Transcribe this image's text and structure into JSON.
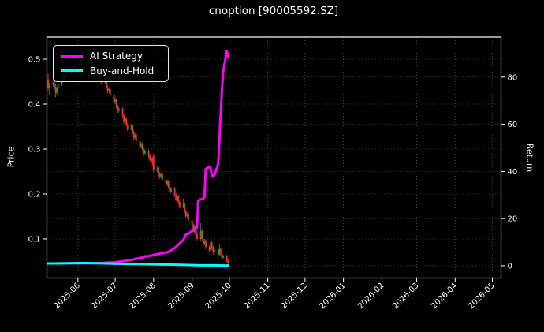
{
  "window": {
    "title": "cnoption [90005592.SZ]"
  },
  "chart_data": {
    "type": "candlestick+line",
    "title": "cnoption [90005592.SZ]",
    "background": "#000000",
    "text_color": "#ffffff",
    "grid": {
      "on": true,
      "color": "#6b6b6b",
      "style": "dotted"
    },
    "x_axis": {
      "tick_labels": [
        "2025-06",
        "2025-07",
        "2025-08",
        "2025-09",
        "2025-10",
        "2025-11",
        "2025-12",
        "2026-01",
        "2026-02",
        "2026-03",
        "2026-04",
        "2026-05"
      ],
      "range_days": [
        "2025-05-07",
        "2026-05-08"
      ]
    },
    "left_axis": {
      "label": "Price",
      "ticks": [
        0.5,
        0.4,
        0.3,
        0.2,
        0.1
      ],
      "range": [
        0.0131,
        0.5491
      ]
    },
    "right_axis": {
      "label": "Return",
      "ticks": [
        80,
        60,
        40,
        20,
        0
      ],
      "range": [
        -5.2,
        97.0
      ]
    },
    "legend": {
      "position": "upper-left",
      "entries": [
        {
          "label": "AI Strategy",
          "color": "#ff00ff"
        },
        {
          "label": "Buy-and-Hold",
          "color": "#00ffff"
        }
      ]
    },
    "candles": {
      "axis": "left",
      "up_color": "#00a83c",
      "down_color": "#ff2626",
      "ohlc": [
        [
          "2025-05-08",
          0.455,
          0.468,
          0.428,
          0.435
        ],
        [
          "2025-05-09",
          0.435,
          0.448,
          0.42,
          0.443
        ],
        [
          "2025-05-12",
          0.443,
          0.452,
          0.438,
          0.448
        ],
        [
          "2025-05-13",
          0.448,
          0.453,
          0.434,
          0.44
        ],
        [
          "2025-05-14",
          0.44,
          0.444,
          0.415,
          0.425
        ],
        [
          "2025-05-15",
          0.425,
          0.438,
          0.42,
          0.435
        ],
        [
          "2025-05-16",
          0.435,
          0.448,
          0.43,
          0.445
        ],
        [
          "2025-05-19",
          0.445,
          0.455,
          0.44,
          0.452
        ],
        [
          "2025-05-20",
          0.452,
          0.463,
          0.448,
          0.46
        ],
        [
          "2025-05-21",
          0.46,
          0.465,
          0.45,
          0.455
        ],
        [
          "2025-05-22",
          0.455,
          0.468,
          0.452,
          0.465
        ],
        [
          "2025-05-23",
          0.465,
          0.476,
          0.46,
          0.472
        ],
        [
          "2025-05-26",
          0.472,
          0.477,
          0.463,
          0.468
        ],
        [
          "2025-05-27",
          0.468,
          0.482,
          0.465,
          0.478
        ],
        [
          "2025-05-28",
          0.478,
          0.49,
          0.474,
          0.485
        ],
        [
          "2025-05-29",
          0.485,
          0.489,
          0.475,
          0.48
        ],
        [
          "2025-05-30",
          0.48,
          0.492,
          0.477,
          0.488
        ],
        [
          "2025-06-02",
          0.488,
          0.498,
          0.484,
          0.495
        ],
        [
          "2025-06-03",
          0.495,
          0.5,
          0.487,
          0.49
        ],
        [
          "2025-06-04",
          0.49,
          0.504,
          0.487,
          0.5
        ],
        [
          "2025-06-05",
          0.5,
          0.51,
          0.496,
          0.505
        ],
        [
          "2025-06-06",
          0.505,
          0.509,
          0.494,
          0.498
        ],
        [
          "2025-06-09",
          0.498,
          0.507,
          0.494,
          0.503
        ],
        [
          "2025-06-10",
          0.503,
          0.507,
          0.491,
          0.495
        ],
        [
          "2025-06-11",
          0.495,
          0.504,
          0.491,
          0.5
        ],
        [
          "2025-06-12",
          0.5,
          0.503,
          0.486,
          0.49
        ],
        [
          "2025-06-13",
          0.49,
          0.494,
          0.476,
          0.48
        ],
        [
          "2025-06-16",
          0.48,
          0.484,
          0.468,
          0.472
        ],
        [
          "2025-06-17",
          0.472,
          0.482,
          0.469,
          0.478
        ],
        [
          "2025-06-18",
          0.478,
          0.481,
          0.464,
          0.468
        ],
        [
          "2025-06-19",
          0.468,
          0.472,
          0.454,
          0.458
        ],
        [
          "2025-06-20",
          0.458,
          0.462,
          0.444,
          0.448
        ],
        [
          "2025-06-23",
          0.448,
          0.456,
          0.444,
          0.452
        ],
        [
          "2025-06-24",
          0.452,
          0.455,
          0.434,
          0.438
        ],
        [
          "2025-06-25",
          0.438,
          0.442,
          0.424,
          0.428
        ],
        [
          "2025-06-26",
          0.428,
          0.437,
          0.424,
          0.433
        ],
        [
          "2025-06-27",
          0.433,
          0.436,
          0.416,
          0.42
        ],
        [
          "2025-06-30",
          0.42,
          0.424,
          0.4,
          0.405
        ],
        [
          "2025-07-01",
          0.405,
          0.414,
          0.401,
          0.41
        ],
        [
          "2025-07-02",
          0.41,
          0.413,
          0.39,
          0.395
        ],
        [
          "2025-07-03",
          0.395,
          0.399,
          0.38,
          0.385
        ],
        [
          "2025-07-04",
          0.385,
          0.394,
          0.381,
          0.39
        ],
        [
          "2025-07-07",
          0.39,
          0.393,
          0.37,
          0.375
        ],
        [
          "2025-07-08",
          0.375,
          0.379,
          0.355,
          0.36
        ],
        [
          "2025-07-09",
          0.36,
          0.372,
          0.356,
          0.368
        ],
        [
          "2025-07-10",
          0.368,
          0.371,
          0.35,
          0.355
        ],
        [
          "2025-07-11",
          0.355,
          0.359,
          0.34,
          0.345
        ],
        [
          "2025-07-14",
          0.345,
          0.356,
          0.341,
          0.352
        ],
        [
          "2025-07-15",
          0.352,
          0.355,
          0.333,
          0.338
        ],
        [
          "2025-07-16",
          0.338,
          0.342,
          0.32,
          0.325
        ],
        [
          "2025-07-17",
          0.325,
          0.336,
          0.321,
          0.332
        ],
        [
          "2025-07-18",
          0.332,
          0.335,
          0.313,
          0.318
        ],
        [
          "2025-07-21",
          0.318,
          0.322,
          0.3,
          0.305
        ],
        [
          "2025-07-22",
          0.305,
          0.316,
          0.301,
          0.312
        ],
        [
          "2025-07-23",
          0.312,
          0.315,
          0.295,
          0.3
        ],
        [
          "2025-07-24",
          0.3,
          0.304,
          0.285,
          0.29
        ],
        [
          "2025-07-25",
          0.29,
          0.3,
          0.286,
          0.296
        ],
        [
          "2025-07-28",
          0.296,
          0.299,
          0.28,
          0.285
        ],
        [
          "2025-07-29",
          0.285,
          0.289,
          0.27,
          0.275
        ],
        [
          "2025-07-30",
          0.275,
          0.284,
          0.271,
          0.28
        ],
        [
          "2025-07-31",
          0.28,
          0.283,
          0.263,
          0.268
        ],
        [
          "2025-08-01",
          0.285,
          0.29,
          0.247,
          0.252
        ],
        [
          "2025-08-04",
          0.252,
          0.262,
          0.248,
          0.258
        ],
        [
          "2025-08-05",
          0.258,
          0.261,
          0.24,
          0.245
        ],
        [
          "2025-08-06",
          0.245,
          0.249,
          0.233,
          0.238
        ],
        [
          "2025-08-07",
          0.238,
          0.248,
          0.234,
          0.244
        ],
        [
          "2025-08-08",
          0.244,
          0.247,
          0.227,
          0.232
        ],
        [
          "2025-08-11",
          0.232,
          0.236,
          0.217,
          0.222
        ],
        [
          "2025-08-12",
          0.222,
          0.232,
          0.218,
          0.228
        ],
        [
          "2025-08-13",
          0.228,
          0.231,
          0.21,
          0.215
        ],
        [
          "2025-08-14",
          0.215,
          0.219,
          0.2,
          0.205
        ],
        [
          "2025-08-15",
          0.205,
          0.216,
          0.201,
          0.212
        ],
        [
          "2025-08-18",
          0.212,
          0.215,
          0.193,
          0.198
        ],
        [
          "2025-08-19",
          0.198,
          0.202,
          0.183,
          0.188
        ],
        [
          "2025-08-20",
          0.188,
          0.205,
          0.184,
          0.195
        ],
        [
          "2025-08-21",
          0.195,
          0.198,
          0.177,
          0.182
        ],
        [
          "2025-08-22",
          0.182,
          0.186,
          0.167,
          0.172
        ],
        [
          "2025-08-25",
          0.172,
          0.19,
          0.168,
          0.178
        ],
        [
          "2025-08-26",
          0.178,
          0.181,
          0.157,
          0.162
        ],
        [
          "2025-08-27",
          0.162,
          0.166,
          0.145,
          0.15
        ],
        [
          "2025-08-28",
          0.15,
          0.16,
          0.146,
          0.156
        ],
        [
          "2025-08-29",
          0.156,
          0.159,
          0.137,
          0.142
        ],
        [
          "2025-09-01",
          0.142,
          0.146,
          0.127,
          0.132
        ],
        [
          "2025-09-02",
          0.132,
          0.136,
          0.117,
          0.122
        ],
        [
          "2025-09-03",
          0.122,
          0.132,
          0.118,
          0.128
        ],
        [
          "2025-09-04",
          0.128,
          0.131,
          0.107,
          0.112
        ],
        [
          "2025-09-05",
          0.112,
          0.116,
          0.095,
          0.1
        ],
        [
          "2025-09-08",
          0.1,
          0.135,
          0.096,
          0.118
        ],
        [
          "2025-09-09",
          0.118,
          0.121,
          0.095,
          0.1
        ],
        [
          "2025-09-10",
          0.1,
          0.104,
          0.085,
          0.09
        ],
        [
          "2025-09-11",
          0.09,
          0.099,
          0.086,
          0.096
        ],
        [
          "2025-09-12",
          0.096,
          0.099,
          0.077,
          0.082
        ],
        [
          "2025-09-15",
          0.082,
          0.086,
          0.07,
          0.075
        ],
        [
          "2025-09-16",
          0.075,
          0.105,
          0.072,
          0.092
        ],
        [
          "2025-09-17",
          0.092,
          0.095,
          0.075,
          0.08
        ],
        [
          "2025-09-18",
          0.08,
          0.084,
          0.065,
          0.07
        ],
        [
          "2025-09-19",
          0.07,
          0.079,
          0.066,
          0.076
        ],
        [
          "2025-09-22",
          0.076,
          0.079,
          0.06,
          0.065
        ],
        [
          "2025-09-23",
          0.065,
          0.09,
          0.062,
          0.078
        ],
        [
          "2025-09-24",
          0.078,
          0.081,
          0.063,
          0.068
        ],
        [
          "2025-09-25",
          0.068,
          0.071,
          0.053,
          0.058
        ],
        [
          "2025-09-26",
          0.058,
          0.065,
          0.054,
          0.062
        ],
        [
          "2025-09-29",
          0.062,
          0.065,
          0.047,
          0.052
        ],
        [
          "2025-09-30",
          0.052,
          0.055,
          0.042,
          0.046
        ]
      ]
    },
    "series": [
      {
        "name": "AI Strategy",
        "color": "#ff00ff",
        "axis": "right",
        "line_width": 3,
        "points": [
          [
            "2025-05-08",
            1.0
          ],
          [
            "2025-05-16",
            1.0
          ],
          [
            "2025-05-23",
            1.02
          ],
          [
            "2025-05-30",
            1.04
          ],
          [
            "2025-06-06",
            1.08
          ],
          [
            "2025-06-13",
            1.13
          ],
          [
            "2025-06-20",
            1.2
          ],
          [
            "2025-06-25",
            1.35
          ],
          [
            "2025-07-01",
            1.5
          ],
          [
            "2025-07-04",
            1.7
          ],
          [
            "2025-07-08",
            2.0
          ],
          [
            "2025-07-11",
            2.3
          ],
          [
            "2025-07-15",
            2.6
          ],
          [
            "2025-07-18",
            3.0
          ],
          [
            "2025-07-22",
            3.4
          ],
          [
            "2025-07-24",
            3.6
          ],
          [
            "2025-07-25",
            4.0
          ],
          [
            "2025-07-28",
            4.1
          ],
          [
            "2025-07-30",
            4.3
          ],
          [
            "2025-08-01",
            4.6
          ],
          [
            "2025-08-05",
            5.0
          ],
          [
            "2025-08-08",
            5.4
          ],
          [
            "2025-08-12",
            5.7
          ],
          [
            "2025-08-14",
            6.2
          ],
          [
            "2025-08-18",
            7.5
          ],
          [
            "2025-08-21",
            9.0
          ],
          [
            "2025-08-25",
            11.0
          ],
          [
            "2025-08-27",
            13.2
          ],
          [
            "2025-08-29",
            13.6
          ],
          [
            "2025-09-01",
            14.8
          ],
          [
            "2025-09-02",
            15.0
          ],
          [
            "2025-09-03",
            14.6
          ],
          [
            "2025-09-04",
            15.5
          ],
          [
            "2025-09-05",
            16.2
          ],
          [
            "2025-09-06",
            27.5
          ],
          [
            "2025-09-08",
            28.2
          ],
          [
            "2025-09-10",
            28.4
          ],
          [
            "2025-09-11",
            29.2
          ],
          [
            "2025-09-12",
            41.0
          ],
          [
            "2025-09-15",
            42.0
          ],
          [
            "2025-09-16",
            41.3
          ],
          [
            "2025-09-17",
            38.2
          ],
          [
            "2025-09-18",
            37.8
          ],
          [
            "2025-09-19",
            38.5
          ],
          [
            "2025-09-22",
            43.0
          ],
          [
            "2025-09-23",
            53.0
          ],
          [
            "2025-09-24",
            64.0
          ],
          [
            "2025-09-25",
            74.0
          ],
          [
            "2025-09-26",
            82.0
          ],
          [
            "2025-09-29",
            91.2
          ],
          [
            "2025-09-30",
            88.6
          ]
        ]
      },
      {
        "name": "Buy-and-Hold",
        "color": "#00ffff",
        "axis": "right",
        "line_width": 3,
        "points": [
          [
            "2025-05-08",
            1.0
          ],
          [
            "2025-05-14",
            0.98
          ],
          [
            "2025-05-23",
            1.09
          ],
          [
            "2025-05-30",
            1.12
          ],
          [
            "2025-06-05",
            1.16
          ],
          [
            "2025-06-13",
            1.1
          ],
          [
            "2025-06-20",
            1.03
          ],
          [
            "2025-06-30",
            0.93
          ],
          [
            "2025-07-08",
            0.83
          ],
          [
            "2025-07-15",
            0.78
          ],
          [
            "2025-07-22",
            0.72
          ],
          [
            "2025-07-31",
            0.62
          ],
          [
            "2025-08-08",
            0.53
          ],
          [
            "2025-08-15",
            0.49
          ],
          [
            "2025-08-22",
            0.4
          ],
          [
            "2025-08-29",
            0.33
          ],
          [
            "2025-09-05",
            0.23
          ],
          [
            "2025-09-12",
            0.19
          ],
          [
            "2025-09-19",
            0.17
          ],
          [
            "2025-09-25",
            0.13
          ],
          [
            "2025-09-30",
            0.11
          ]
        ]
      }
    ]
  }
}
